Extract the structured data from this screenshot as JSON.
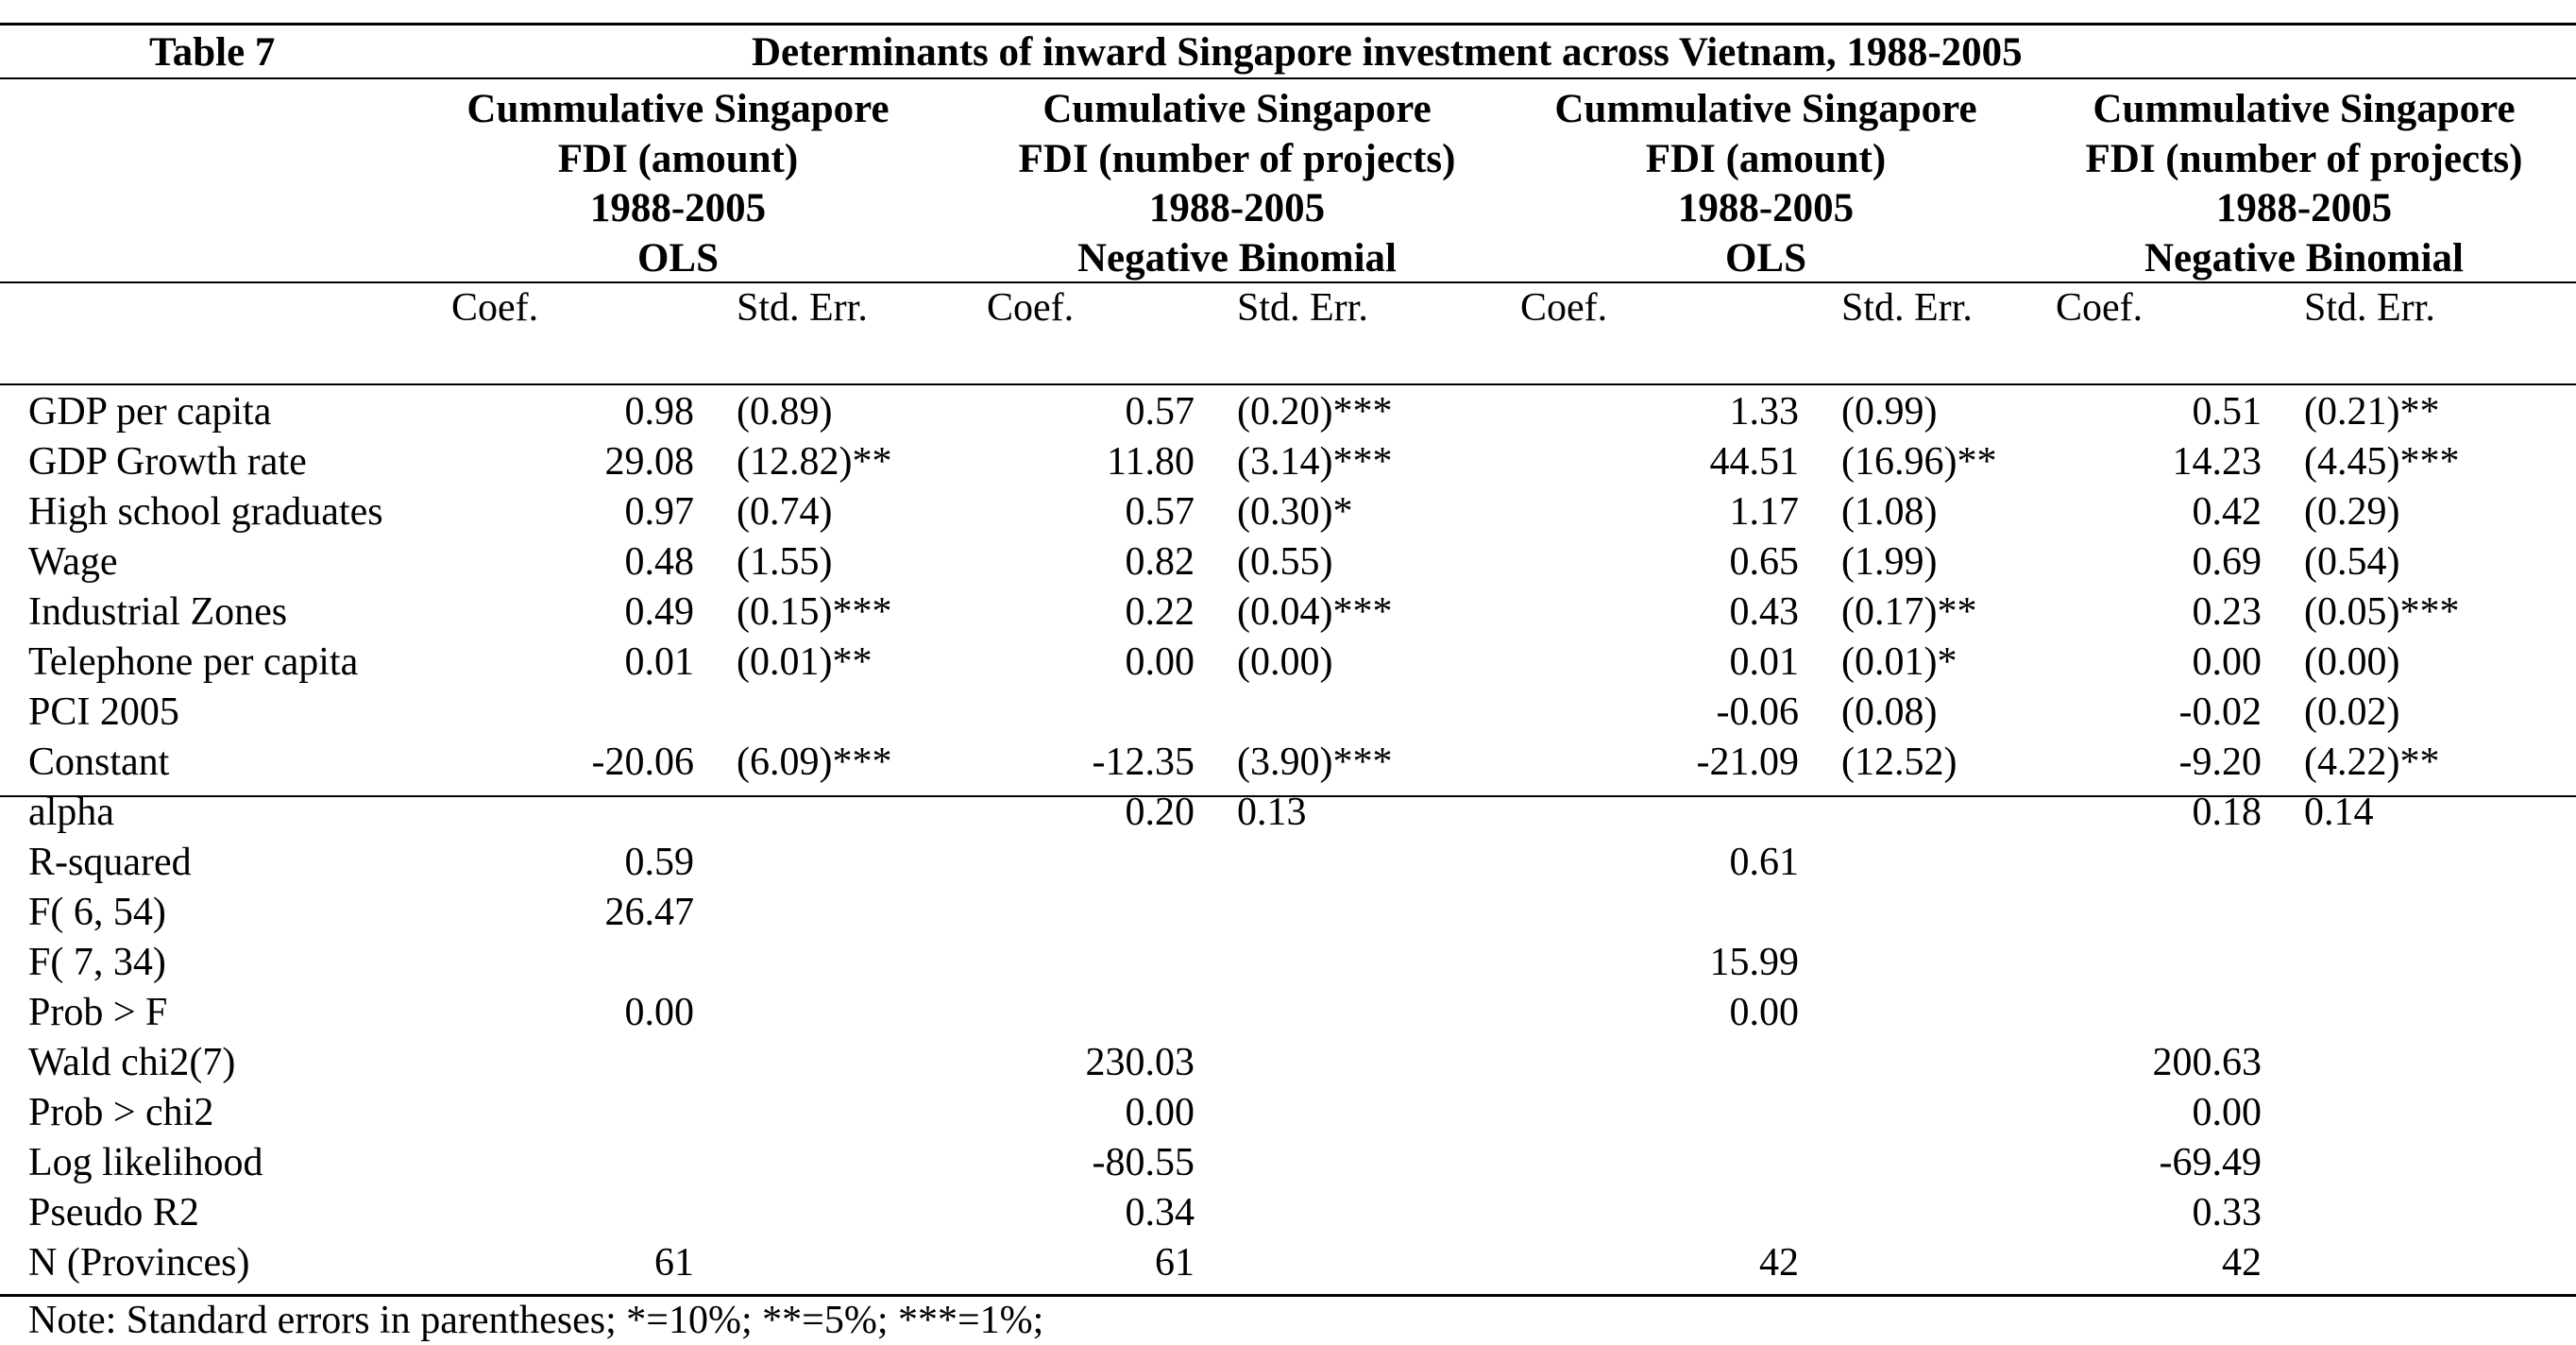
{
  "table": {
    "label": "Table 7",
    "title": "Determinants of inward Singapore investment across Vietnam, 1988-2005",
    "models": [
      {
        "lines": [
          "Cummulative Singapore",
          "FDI (amount)",
          "1988-2005",
          "OLS"
        ]
      },
      {
        "lines": [
          "Cumulative Singapore",
          "FDI (number of projects)",
          "1988-2005",
          "Negative Binomial"
        ]
      },
      {
        "lines": [
          "Cummulative Singapore",
          "FDI (amount)",
          "1988-2005",
          "OLS"
        ]
      },
      {
        "lines": [
          "Cummulative Singapore",
          "FDI (number of projects)",
          "1988-2005",
          "Negative Binomial"
        ]
      }
    ],
    "subheaders": {
      "coef": "Coef.",
      "stderr": "Std. Err."
    },
    "rows": [
      {
        "label": "GDP per capita",
        "values": [
          [
            "0.98",
            "(0.89)"
          ],
          [
            "0.57",
            "(0.20)***"
          ],
          [
            "1.33",
            "(0.99)"
          ],
          [
            "0.51",
            "(0.21)**"
          ]
        ]
      },
      {
        "label": "GDP Growth rate",
        "values": [
          [
            "29.08",
            "(12.82)**"
          ],
          [
            "11.80",
            "(3.14)***"
          ],
          [
            "44.51",
            "(16.96)**"
          ],
          [
            "14.23",
            "(4.45)***"
          ]
        ]
      },
      {
        "label": "High school graduates",
        "values": [
          [
            "0.97",
            "(0.74)"
          ],
          [
            "0.57",
            "(0.30)*"
          ],
          [
            "1.17",
            "(1.08)"
          ],
          [
            "0.42",
            "(0.29)"
          ]
        ]
      },
      {
        "label": "Wage",
        "values": [
          [
            "0.48",
            "(1.55)"
          ],
          [
            "0.82",
            "(0.55)"
          ],
          [
            "0.65",
            "(1.99)"
          ],
          [
            "0.69",
            "(0.54)"
          ]
        ]
      },
      {
        "label": "Industrial Zones",
        "values": [
          [
            "0.49",
            "(0.15)***"
          ],
          [
            "0.22",
            "(0.04)***"
          ],
          [
            "0.43",
            "(0.17)**"
          ],
          [
            "0.23",
            "(0.05)***"
          ]
        ]
      },
      {
        "label": "Telephone per capita",
        "values": [
          [
            "0.01",
            "(0.01)**"
          ],
          [
            "0.00",
            "(0.00)"
          ],
          [
            "0.01",
            "(0.01)*"
          ],
          [
            "0.00",
            "(0.00)"
          ]
        ]
      },
      {
        "label": "PCI 2005",
        "values": [
          [
            "",
            ""
          ],
          [
            "",
            ""
          ],
          [
            "-0.06",
            "(0.08)"
          ],
          [
            "-0.02",
            "(0.02)"
          ]
        ]
      },
      {
        "label": "Constant",
        "values": [
          [
            "-20.06",
            "(6.09)***"
          ],
          [
            "-12.35",
            "(3.90)***"
          ],
          [
            "-21.09",
            "(12.52)"
          ],
          [
            "-9.20",
            "(4.22)**"
          ]
        ]
      }
    ],
    "stats": [
      {
        "label": "alpha",
        "values": [
          [
            "",
            ""
          ],
          [
            "0.20",
            "0.13"
          ],
          [
            "",
            ""
          ],
          [
            "0.18",
            "0.14"
          ]
        ]
      },
      {
        "label": "R-squared",
        "values": [
          [
            "0.59",
            ""
          ],
          [
            "",
            ""
          ],
          [
            "0.61",
            ""
          ],
          [
            "",
            ""
          ]
        ]
      },
      {
        "label": "F(  6, 54)",
        "values": [
          [
            "26.47",
            ""
          ],
          [
            "",
            ""
          ],
          [
            "",
            ""
          ],
          [
            "",
            ""
          ]
        ]
      },
      {
        "label": "F(  7, 34)",
        "values": [
          [
            "",
            ""
          ],
          [
            "",
            ""
          ],
          [
            "15.99",
            ""
          ],
          [
            "",
            ""
          ]
        ]
      },
      {
        "label": "Prob > F",
        "values": [
          [
            "0.00",
            ""
          ],
          [
            "",
            ""
          ],
          [
            "0.00",
            ""
          ],
          [
            "",
            ""
          ]
        ]
      },
      {
        "label": "Wald chi2(7)",
        "values": [
          [
            "",
            ""
          ],
          [
            "230.03",
            ""
          ],
          [
            "",
            ""
          ],
          [
            "200.63",
            ""
          ]
        ]
      },
      {
        "label": "Prob > chi2",
        "values": [
          [
            "",
            ""
          ],
          [
            "0.00",
            ""
          ],
          [
            "",
            ""
          ],
          [
            "0.00",
            ""
          ]
        ]
      },
      {
        "label": "Log likelihood",
        "values": [
          [
            "",
            ""
          ],
          [
            "-80.55",
            ""
          ],
          [
            "",
            ""
          ],
          [
            "-69.49",
            ""
          ]
        ]
      },
      {
        "label": "Pseudo R2",
        "values": [
          [
            "",
            ""
          ],
          [
            "0.34",
            ""
          ],
          [
            "",
            ""
          ],
          [
            "0.33",
            ""
          ]
        ]
      },
      {
        "label": "N (Provinces)",
        "values": [
          [
            "61",
            ""
          ],
          [
            "61",
            ""
          ],
          [
            "42",
            ""
          ],
          [
            "42",
            ""
          ]
        ]
      }
    ],
    "note": "Note: Standard errors in parentheses; *=10%; **=5%; ***=1%;"
  }
}
